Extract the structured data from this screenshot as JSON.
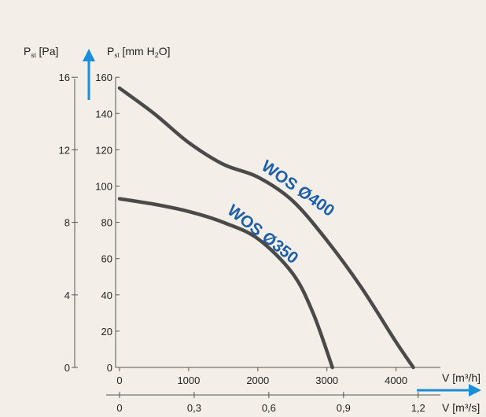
{
  "chart_data": {
    "type": "line",
    "title": "",
    "left_axis": {
      "label_main": "P",
      "label_sub": "st",
      "label_unit": " [Pa]",
      "ticks": [
        0,
        4,
        8,
        12,
        16
      ]
    },
    "right_axis": {
      "label_main": "P",
      "label_sub": "st",
      "label_unit_a": " [mm H",
      "label_unit_sub": "2",
      "label_unit_b": "O]",
      "ticks": [
        0,
        20,
        40,
        60,
        80,
        100,
        120,
        140,
        160
      ]
    },
    "x_axis_top": {
      "label": "V [m³/h]",
      "ticks": [
        "0",
        "1000",
        "2000",
        "3000",
        "4000"
      ],
      "values": [
        0,
        1000,
        2000,
        3000,
        4000
      ],
      "range": [
        0,
        4500
      ]
    },
    "x_axis_bottom": {
      "label": "V [m³/s]",
      "ticks": [
        "0",
        "0,3",
        "0,6",
        "0,9",
        "1,2"
      ]
    },
    "ylim": [
      0,
      160
    ],
    "colors": {
      "curve": "#4a4a4a",
      "arrow": "#1a8ed8",
      "label": "#1f5fa8",
      "background": "#f3efe8"
    },
    "series": [
      {
        "name": "WOS Ø400",
        "x": [
          0,
          500,
          1000,
          1500,
          2000,
          2500,
          3000,
          3500,
          4000,
          4250
        ],
        "y": [
          154,
          140,
          124,
          112,
          105,
          92,
          70,
          44,
          14,
          0
        ]
      },
      {
        "name": "WOS Ø350",
        "x": [
          0,
          500,
          1000,
          1500,
          2000,
          2500,
          2800,
          3080
        ],
        "y": [
          93,
          90,
          86,
          80,
          71,
          52,
          30,
          0
        ]
      }
    ]
  }
}
